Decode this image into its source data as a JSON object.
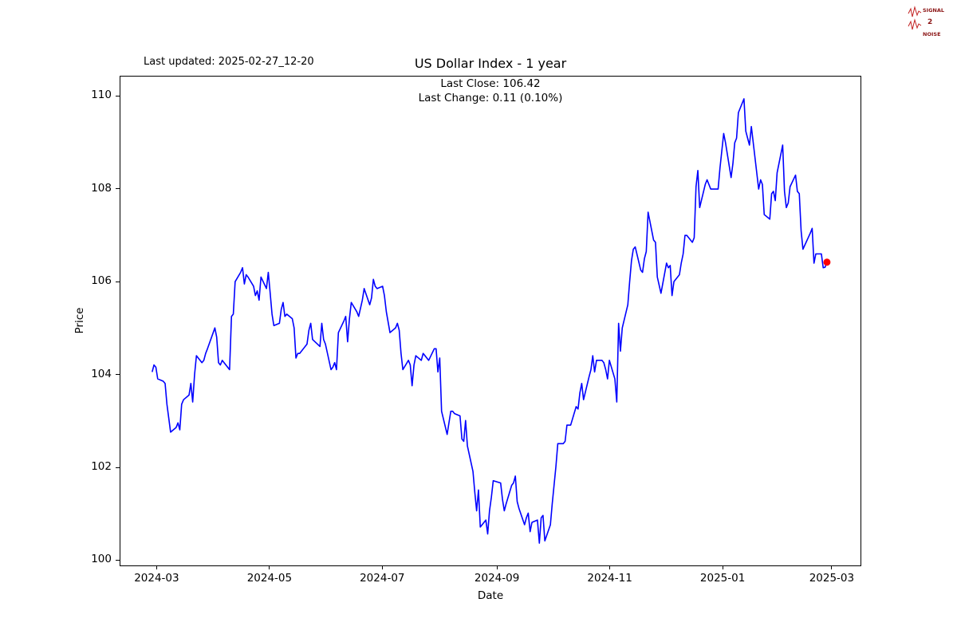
{
  "header": {
    "last_updated": "Last updated: 2025-02-27_12-20",
    "logo": {
      "line1": "SIGNAL",
      "line2": "2",
      "line3": "NOISE"
    }
  },
  "annotations": {
    "last_close": "Last Close: 106.42",
    "last_change": "Last Change: 0.11 (0.10%)"
  },
  "chart_data": {
    "type": "line",
    "title": "US Dollar Index - 1 year",
    "xlabel": "Date",
    "ylabel": "Price",
    "series_name": "US Dollar Index",
    "line_color": "#0000ff",
    "marker_color": "#ff0000",
    "last_close": 106.42,
    "last_change": 0.11,
    "last_change_pct": "0.10%",
    "grid": false,
    "legend": false,
    "xlim": [
      "2024-02-10",
      "2025-03-17"
    ],
    "ylim": [
      99.87,
      110.43
    ],
    "y_ticks": [
      100,
      102,
      104,
      106,
      108,
      110
    ],
    "x_ticks": [
      {
        "label": "2024-03",
        "date": "2024-03-01"
      },
      {
        "label": "2024-05",
        "date": "2024-05-01"
      },
      {
        "label": "2024-07",
        "date": "2024-07-01"
      },
      {
        "label": "2024-09",
        "date": "2024-09-01"
      },
      {
        "label": "2024-11",
        "date": "2024-11-01"
      },
      {
        "label": "2025-01",
        "date": "2025-01-01"
      },
      {
        "label": "2025-03",
        "date": "2025-03-01"
      }
    ],
    "points": [
      [
        "2024-02-27",
        104.05
      ],
      [
        "2024-02-28",
        104.2
      ],
      [
        "2024-02-29",
        104.15
      ],
      [
        "2024-03-01",
        103.9
      ],
      [
        "2024-03-04",
        103.85
      ],
      [
        "2024-03-05",
        103.8
      ],
      [
        "2024-03-06",
        103.35
      ],
      [
        "2024-03-07",
        103.05
      ],
      [
        "2024-03-08",
        102.75
      ],
      [
        "2024-03-11",
        102.85
      ],
      [
        "2024-03-12",
        102.95
      ],
      [
        "2024-03-13",
        102.8
      ],
      [
        "2024-03-14",
        103.35
      ],
      [
        "2024-03-15",
        103.45
      ],
      [
        "2024-03-18",
        103.55
      ],
      [
        "2024-03-19",
        103.8
      ],
      [
        "2024-03-20",
        103.4
      ],
      [
        "2024-03-21",
        104.0
      ],
      [
        "2024-03-22",
        104.4
      ],
      [
        "2024-03-25",
        104.25
      ],
      [
        "2024-03-26",
        104.3
      ],
      [
        "2024-03-27",
        104.45
      ],
      [
        "2024-03-28",
        104.55
      ],
      [
        "2024-04-01",
        105.0
      ],
      [
        "2024-04-02",
        104.8
      ],
      [
        "2024-04-03",
        104.25
      ],
      [
        "2024-04-04",
        104.2
      ],
      [
        "2024-04-05",
        104.3
      ],
      [
        "2024-04-09",
        104.1
      ],
      [
        "2024-04-10",
        105.25
      ],
      [
        "2024-04-11",
        105.3
      ],
      [
        "2024-04-12",
        106.0
      ],
      [
        "2024-04-15",
        106.2
      ],
      [
        "2024-04-16",
        106.3
      ],
      [
        "2024-04-17",
        105.95
      ],
      [
        "2024-04-18",
        106.15
      ],
      [
        "2024-04-19",
        106.1
      ],
      [
        "2024-04-22",
        105.9
      ],
      [
        "2024-04-23",
        105.7
      ],
      [
        "2024-04-24",
        105.8
      ],
      [
        "2024-04-25",
        105.6
      ],
      [
        "2024-04-26",
        106.1
      ],
      [
        "2024-04-29",
        105.85
      ],
      [
        "2024-04-30",
        106.2
      ],
      [
        "2024-05-01",
        105.75
      ],
      [
        "2024-05-02",
        105.3
      ],
      [
        "2024-05-03",
        105.05
      ],
      [
        "2024-05-06",
        105.1
      ],
      [
        "2024-05-07",
        105.4
      ],
      [
        "2024-05-08",
        105.55
      ],
      [
        "2024-05-09",
        105.25
      ],
      [
        "2024-05-10",
        105.3
      ],
      [
        "2024-05-13",
        105.2
      ],
      [
        "2024-05-14",
        105.0
      ],
      [
        "2024-05-15",
        104.35
      ],
      [
        "2024-05-16",
        104.45
      ],
      [
        "2024-05-17",
        104.45
      ],
      [
        "2024-05-20",
        104.6
      ],
      [
        "2024-05-21",
        104.65
      ],
      [
        "2024-05-22",
        104.95
      ],
      [
        "2024-05-23",
        105.1
      ],
      [
        "2024-05-24",
        104.75
      ],
      [
        "2024-05-28",
        104.6
      ],
      [
        "2024-05-29",
        105.1
      ],
      [
        "2024-05-30",
        104.75
      ],
      [
        "2024-05-31",
        104.65
      ],
      [
        "2024-06-03",
        104.1
      ],
      [
        "2024-06-04",
        104.15
      ],
      [
        "2024-06-05",
        104.25
      ],
      [
        "2024-06-06",
        104.1
      ],
      [
        "2024-06-07",
        104.9
      ],
      [
        "2024-06-10",
        105.15
      ],
      [
        "2024-06-11",
        105.25
      ],
      [
        "2024-06-12",
        104.7
      ],
      [
        "2024-06-13",
        105.2
      ],
      [
        "2024-06-14",
        105.55
      ],
      [
        "2024-06-17",
        105.35
      ],
      [
        "2024-06-18",
        105.25
      ],
      [
        "2024-06-20",
        105.6
      ],
      [
        "2024-06-21",
        105.85
      ],
      [
        "2024-06-24",
        105.5
      ],
      [
        "2024-06-25",
        105.65
      ],
      [
        "2024-06-26",
        106.05
      ],
      [
        "2024-06-27",
        105.9
      ],
      [
        "2024-06-28",
        105.85
      ],
      [
        "2024-07-01",
        105.9
      ],
      [
        "2024-07-02",
        105.7
      ],
      [
        "2024-07-03",
        105.35
      ],
      [
        "2024-07-05",
        104.9
      ],
      [
        "2024-07-08",
        105.0
      ],
      [
        "2024-07-09",
        105.1
      ],
      [
        "2024-07-10",
        104.95
      ],
      [
        "2024-07-11",
        104.45
      ],
      [
        "2024-07-12",
        104.1
      ],
      [
        "2024-07-15",
        104.3
      ],
      [
        "2024-07-16",
        104.2
      ],
      [
        "2024-07-17",
        103.75
      ],
      [
        "2024-07-18",
        104.2
      ],
      [
        "2024-07-19",
        104.4
      ],
      [
        "2024-07-22",
        104.3
      ],
      [
        "2024-07-23",
        104.45
      ],
      [
        "2024-07-24",
        104.4
      ],
      [
        "2024-07-25",
        104.35
      ],
      [
        "2024-07-26",
        104.3
      ],
      [
        "2024-07-29",
        104.55
      ],
      [
        "2024-07-30",
        104.55
      ],
      [
        "2024-07-31",
        104.05
      ],
      [
        "2024-08-01",
        104.35
      ],
      [
        "2024-08-02",
        103.2
      ],
      [
        "2024-08-05",
        102.7
      ],
      [
        "2024-08-06",
        102.95
      ],
      [
        "2024-08-07",
        103.2
      ],
      [
        "2024-08-08",
        103.2
      ],
      [
        "2024-08-09",
        103.15
      ],
      [
        "2024-08-12",
        103.1
      ],
      [
        "2024-08-13",
        102.6
      ],
      [
        "2024-08-14",
        102.55
      ],
      [
        "2024-08-15",
        103.0
      ],
      [
        "2024-08-16",
        102.45
      ],
      [
        "2024-08-19",
        101.9
      ],
      [
        "2024-08-20",
        101.45
      ],
      [
        "2024-08-21",
        101.05
      ],
      [
        "2024-08-22",
        101.5
      ],
      [
        "2024-08-23",
        100.7
      ],
      [
        "2024-08-26",
        100.85
      ],
      [
        "2024-08-27",
        100.55
      ],
      [
        "2024-08-28",
        101.05
      ],
      [
        "2024-08-29",
        101.35
      ],
      [
        "2024-08-30",
        101.7
      ],
      [
        "2024-09-03",
        101.65
      ],
      [
        "2024-09-04",
        101.3
      ],
      [
        "2024-09-05",
        101.05
      ],
      [
        "2024-09-06",
        101.2
      ],
      [
        "2024-09-09",
        101.6
      ],
      [
        "2024-09-10",
        101.65
      ],
      [
        "2024-09-11",
        101.8
      ],
      [
        "2024-09-12",
        101.25
      ],
      [
        "2024-09-13",
        101.1
      ],
      [
        "2024-09-16",
        100.75
      ],
      [
        "2024-09-17",
        100.9
      ],
      [
        "2024-09-18",
        101.0
      ],
      [
        "2024-09-19",
        100.6
      ],
      [
        "2024-09-20",
        100.8
      ],
      [
        "2024-09-23",
        100.85
      ],
      [
        "2024-09-24",
        100.35
      ],
      [
        "2024-09-25",
        100.9
      ],
      [
        "2024-09-26",
        100.95
      ],
      [
        "2024-09-27",
        100.4
      ],
      [
        "2024-09-30",
        100.75
      ],
      [
        "2024-10-01",
        101.2
      ],
      [
        "2024-10-02",
        101.6
      ],
      [
        "2024-10-03",
        102.0
      ],
      [
        "2024-10-04",
        102.5
      ],
      [
        "2024-10-07",
        102.5
      ],
      [
        "2024-10-08",
        102.55
      ],
      [
        "2024-10-09",
        102.9
      ],
      [
        "2024-10-10",
        102.9
      ],
      [
        "2024-10-11",
        102.9
      ],
      [
        "2024-10-14",
        103.3
      ],
      [
        "2024-10-15",
        103.25
      ],
      [
        "2024-10-16",
        103.6
      ],
      [
        "2024-10-17",
        103.8
      ],
      [
        "2024-10-18",
        103.45
      ],
      [
        "2024-10-21",
        103.95
      ],
      [
        "2024-10-22",
        104.1
      ],
      [
        "2024-10-23",
        104.4
      ],
      [
        "2024-10-24",
        104.05
      ],
      [
        "2024-10-25",
        104.3
      ],
      [
        "2024-10-28",
        104.3
      ],
      [
        "2024-10-29",
        104.25
      ],
      [
        "2024-10-30",
        104.1
      ],
      [
        "2024-10-31",
        103.9
      ],
      [
        "2024-11-01",
        104.3
      ],
      [
        "2024-11-04",
        103.9
      ],
      [
        "2024-11-05",
        103.4
      ],
      [
        "2024-11-06",
        105.1
      ],
      [
        "2024-11-07",
        104.5
      ],
      [
        "2024-11-08",
        105.0
      ],
      [
        "2024-11-11",
        105.5
      ],
      [
        "2024-11-12",
        106.0
      ],
      [
        "2024-11-13",
        106.45
      ],
      [
        "2024-11-14",
        106.7
      ],
      [
        "2024-11-15",
        106.75
      ],
      [
        "2024-11-18",
        106.25
      ],
      [
        "2024-11-19",
        106.2
      ],
      [
        "2024-11-20",
        106.5
      ],
      [
        "2024-11-21",
        106.65
      ],
      [
        "2024-11-22",
        107.5
      ],
      [
        "2024-11-25",
        106.9
      ],
      [
        "2024-11-26",
        106.85
      ],
      [
        "2024-11-27",
        106.1
      ],
      [
        "2024-11-29",
        105.75
      ],
      [
        "2024-12-02",
        106.4
      ],
      [
        "2024-12-03",
        106.3
      ],
      [
        "2024-12-04",
        106.35
      ],
      [
        "2024-12-05",
        105.7
      ],
      [
        "2024-12-06",
        106.0
      ],
      [
        "2024-12-09",
        106.15
      ],
      [
        "2024-12-10",
        106.4
      ],
      [
        "2024-12-11",
        106.6
      ],
      [
        "2024-12-12",
        107.0
      ],
      [
        "2024-12-13",
        107.0
      ],
      [
        "2024-12-16",
        106.85
      ],
      [
        "2024-12-17",
        106.95
      ],
      [
        "2024-12-18",
        108.05
      ],
      [
        "2024-12-19",
        108.4
      ],
      [
        "2024-12-20",
        107.6
      ],
      [
        "2024-12-23",
        108.1
      ],
      [
        "2024-12-24",
        108.2
      ],
      [
        "2024-12-26",
        108.0
      ],
      [
        "2024-12-27",
        108.0
      ],
      [
        "2024-12-30",
        108.0
      ],
      [
        "2024-12-31",
        108.45
      ],
      [
        "2025-01-02",
        109.2
      ],
      [
        "2025-01-03",
        109.0
      ],
      [
        "2025-01-06",
        108.25
      ],
      [
        "2025-01-07",
        108.55
      ],
      [
        "2025-01-08",
        109.0
      ],
      [
        "2025-01-09",
        109.1
      ],
      [
        "2025-01-10",
        109.65
      ],
      [
        "2025-01-13",
        109.95
      ],
      [
        "2025-01-14",
        109.25
      ],
      [
        "2025-01-15",
        109.1
      ],
      [
        "2025-01-16",
        108.95
      ],
      [
        "2025-01-17",
        109.35
      ],
      [
        "2025-01-21",
        108.0
      ],
      [
        "2025-01-22",
        108.2
      ],
      [
        "2025-01-23",
        108.1
      ],
      [
        "2025-01-24",
        107.45
      ],
      [
        "2025-01-27",
        107.35
      ],
      [
        "2025-01-28",
        107.9
      ],
      [
        "2025-01-29",
        107.95
      ],
      [
        "2025-01-30",
        107.75
      ],
      [
        "2025-01-31",
        108.35
      ],
      [
        "2025-02-03",
        108.95
      ],
      [
        "2025-02-04",
        107.95
      ],
      [
        "2025-02-05",
        107.6
      ],
      [
        "2025-02-06",
        107.7
      ],
      [
        "2025-02-07",
        108.05
      ],
      [
        "2025-02-10",
        108.3
      ],
      [
        "2025-02-11",
        107.95
      ],
      [
        "2025-02-12",
        107.9
      ],
      [
        "2025-02-13",
        107.1
      ],
      [
        "2025-02-14",
        106.7
      ],
      [
        "2025-02-18",
        107.05
      ],
      [
        "2025-02-19",
        107.15
      ],
      [
        "2025-02-20",
        106.4
      ],
      [
        "2025-02-21",
        106.6
      ],
      [
        "2025-02-24",
        106.6
      ],
      [
        "2025-02-25",
        106.3
      ],
      [
        "2025-02-26",
        106.31
      ],
      [
        "2025-02-27",
        106.42
      ]
    ]
  }
}
